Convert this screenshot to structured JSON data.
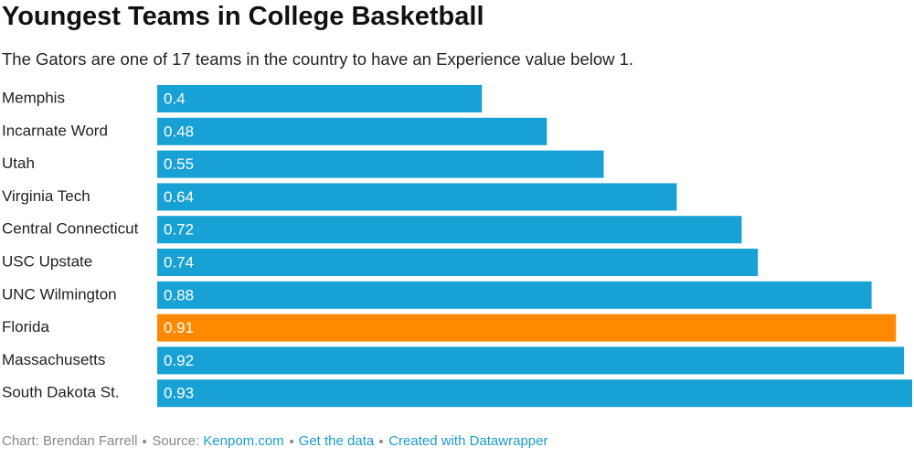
{
  "chart_data": {
    "type": "bar",
    "orientation": "horizontal",
    "title": "Youngest Teams in College Basketball",
    "subtitle": "The Gators are one of 17 teams in the country to have an Experience value below 1.",
    "categories": [
      "Memphis",
      "Incarnate Word",
      "Utah",
      "Virginia Tech",
      "Central Connecticut",
      "USC Upstate",
      "UNC Wilmington",
      "Florida",
      "Massachusetts",
      "South Dakota St."
    ],
    "values": [
      0.4,
      0.48,
      0.55,
      0.64,
      0.72,
      0.74,
      0.88,
      0.91,
      0.92,
      0.93
    ],
    "colors": [
      "#18a1d4",
      "#18a1d4",
      "#18a1d4",
      "#18a1d4",
      "#18a1d4",
      "#18a1d4",
      "#18a1d4",
      "#ff8a00",
      "#18a1d4",
      "#18a1d4"
    ]
  },
  "footer": {
    "credit": "Chart: Brendan Farrell",
    "source_label": "Source:",
    "source": "Kenpom.com",
    "data_link": "Get the data",
    "made_with": "Created with Datawrapper"
  }
}
